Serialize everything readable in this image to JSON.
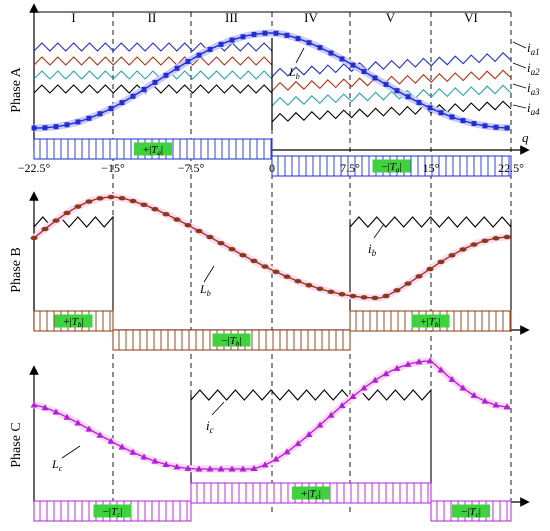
{
  "zones": [
    "I",
    "II",
    "III",
    "IV",
    "V",
    "VI"
  ],
  "axis_var": "q",
  "angle_ticks": [
    "−22.5°",
    "−15°",
    "−7.5°",
    "0",
    "7.5°",
    "15°",
    "22.5°"
  ],
  "panels": [
    {
      "id": "A",
      "label": "Phase A",
      "inductance_label": "L",
      "inductance_sub": "b",
      "current_labels": [
        {
          "i": "i",
          "sub": "a1"
        },
        {
          "i": "i",
          "sub": "a2"
        },
        {
          "i": "i",
          "sub": "a3"
        },
        {
          "i": "i",
          "sub": "a4"
        }
      ],
      "torque": [
        {
          "sign": "+",
          "sym": "T",
          "sub": "a"
        },
        {
          "sign": "−",
          "sym": "T",
          "sub": "a"
        }
      ]
    },
    {
      "id": "B",
      "label": "Phase B",
      "inductance_label": "L",
      "inductance_sub": "b",
      "current_label": "i",
      "current_sub": "b",
      "torque": [
        {
          "sign": "+",
          "sym": "T",
          "sub": "b"
        },
        {
          "sign": "−",
          "sym": "T",
          "sub": "b"
        },
        {
          "sign": "+",
          "sym": "T",
          "sub": "b"
        }
      ]
    },
    {
      "id": "C",
      "label": "Phase C",
      "inductance_label": "L",
      "inductance_sub": "c",
      "current_label": "i",
      "current_sub": "c",
      "torque": [
        {
          "sign": "−",
          "sym": "T",
          "sub": "c"
        },
        {
          "sign": "+",
          "sym": "T",
          "sub": "c"
        },
        {
          "sign": "−",
          "sym": "T",
          "sub": "c"
        }
      ]
    }
  ],
  "colors": {
    "blue": "#1f2fd0",
    "red": "#b83010",
    "cyan": "#2aa6a6",
    "black": "#000000",
    "brown": "#8a3a12",
    "violet": "#b020d8",
    "green_box": "#3ed23e",
    "halo_blue": "#c9c9ff",
    "halo_pink": "#ffd6f4"
  }
}
